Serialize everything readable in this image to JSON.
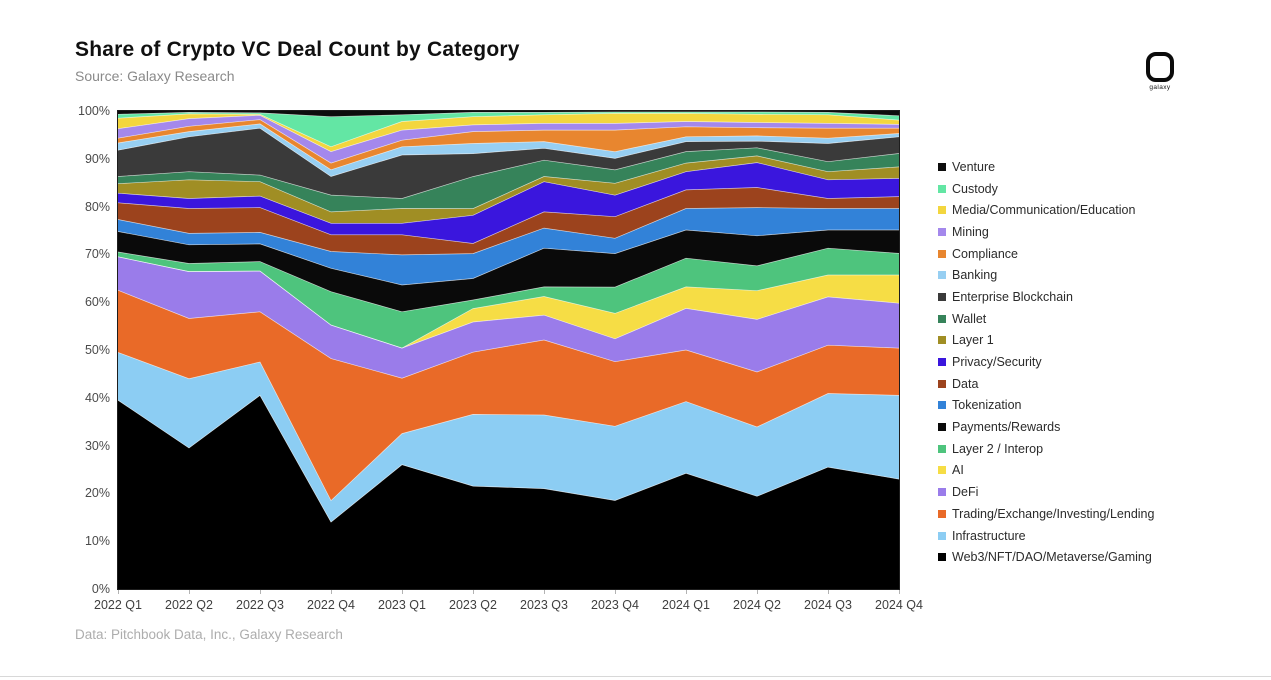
{
  "header": {
    "title": "Share of Crypto VC Deal Count by Category",
    "source": "Source: Galaxy Research"
  },
  "logo": {
    "label": "galaxy"
  },
  "footer": {
    "attribution": "Data: Pitchbook Data, Inc., Galaxy Research"
  },
  "chart_data": {
    "type": "area",
    "stacking": "percent",
    "title": "Share of Crypto VC Deal Count by Category",
    "xlabel": "",
    "ylabel": "",
    "ylim": [
      0,
      100
    ],
    "grid": false,
    "legend_position": "right",
    "y_ticks": [
      "0%",
      "10%",
      "20%",
      "30%",
      "40%",
      "50%",
      "60%",
      "70%",
      "80%",
      "90%",
      "100%"
    ],
    "x": [
      "2022 Q1",
      "2022 Q2",
      "2022 Q3",
      "2022 Q4",
      "2023 Q1",
      "2023 Q2",
      "2023 Q3",
      "2023 Q4",
      "2024 Q1",
      "2024 Q2",
      "2024 Q3",
      "2024 Q4"
    ],
    "series_note": "listed bottom-to-top of the stack; values are percent share per quarter",
    "series": [
      {
        "name": "Web3/NFT/DAO/Metaverse/Gaming",
        "color": "#000000",
        "values": [
          39.5,
          29.5,
          40.5,
          14.0,
          26.0,
          21.5,
          21.0,
          18.5,
          24.2,
          19.4,
          25.5,
          23.0
        ]
      },
      {
        "name": "Infrastructure",
        "color": "#8ccdf3",
        "values": [
          10.0,
          14.5,
          7.0,
          4.5,
          6.5,
          15.0,
          15.4,
          15.5,
          15.0,
          14.5,
          15.4,
          17.5
        ]
      },
      {
        "name": "Trading/Exchange/Investing/Lending",
        "color": "#e96a28",
        "values": [
          13.0,
          12.6,
          10.5,
          29.7,
          11.6,
          13.0,
          15.7,
          13.5,
          10.8,
          11.5,
          10.1,
          9.9
        ]
      },
      {
        "name": "DeFi",
        "color": "#9a7cea",
        "values": [
          7.0,
          9.8,
          8.5,
          7.0,
          6.3,
          6.3,
          5.2,
          4.8,
          8.7,
          11.0,
          10.1,
          9.4
        ]
      },
      {
        "name": "AI",
        "color": "#f6dd45",
        "values": [
          0.0,
          0.0,
          0.0,
          0.0,
          0.0,
          2.8,
          3.9,
          5.3,
          4.5,
          6.0,
          4.6,
          5.9
        ]
      },
      {
        "name": "Layer 2 / Interop",
        "color": "#4ec47d",
        "values": [
          1.0,
          1.7,
          2.0,
          7.0,
          7.6,
          1.8,
          2.0,
          5.5,
          6.0,
          5.2,
          5.6,
          4.5
        ]
      },
      {
        "name": "Payments/Rewards",
        "color": "#0a0a0a",
        "values": [
          4.3,
          3.9,
          3.7,
          4.9,
          5.6,
          4.5,
          8.1,
          7.0,
          5.9,
          6.3,
          3.8,
          4.9
        ]
      },
      {
        "name": "Tokenization",
        "color": "#3282d8",
        "values": [
          2.5,
          2.4,
          2.4,
          3.5,
          6.3,
          5.2,
          4.2,
          3.2,
          4.5,
          5.9,
          4.5,
          4.5
        ]
      },
      {
        "name": "Data",
        "color": "#9c431d",
        "values": [
          3.5,
          5.2,
          5.2,
          3.5,
          4.2,
          2.1,
          3.4,
          4.5,
          3.9,
          4.2,
          2.1,
          2.5
        ]
      },
      {
        "name": "Privacy/Security",
        "color": "#3a16dd",
        "values": [
          2.0,
          2.1,
          2.4,
          2.4,
          2.4,
          5.9,
          6.3,
          4.5,
          3.8,
          5.2,
          3.9,
          3.8
        ]
      },
      {
        "name": "Layer 1",
        "color": "#a08e24",
        "values": [
          2.0,
          3.9,
          3.0,
          2.4,
          3.1,
          1.4,
          1.1,
          2.5,
          1.8,
          1.4,
          1.7,
          2.4
        ]
      },
      {
        "name": "Wallet",
        "color": "#36835a",
        "values": [
          1.5,
          1.7,
          1.4,
          3.5,
          2.1,
          6.7,
          3.4,
          2.8,
          2.4,
          1.7,
          2.1,
          2.8
        ]
      },
      {
        "name": "Enterprise Blockchain",
        "color": "#3a3a3a",
        "values": [
          5.5,
          7.3,
          9.8,
          3.9,
          9.1,
          4.8,
          2.5,
          2.4,
          2.1,
          1.4,
          3.8,
          3.5
        ]
      },
      {
        "name": "Banking",
        "color": "#97cff2",
        "values": [
          1.5,
          1.1,
          0.9,
          1.4,
          1.7,
          2.1,
          1.4,
          1.4,
          1.0,
          1.1,
          1.1,
          0.7
        ]
      },
      {
        "name": "Compliance",
        "color": "#e8862f",
        "values": [
          1.0,
          1.1,
          0.9,
          1.4,
          1.4,
          2.5,
          2.4,
          4.5,
          2.1,
          1.7,
          2.1,
          1.1
        ]
      },
      {
        "name": "Mining",
        "color": "#a488ec",
        "values": [
          2.0,
          1.6,
          0.9,
          2.4,
          2.1,
          1.4,
          1.4,
          1.4,
          1.1,
          1.1,
          1.0,
          0.8
        ]
      },
      {
        "name": "Media/Communication/Education",
        "color": "#f3d63e",
        "values": [
          2.2,
          1.0,
          0.2,
          1.0,
          1.8,
          1.7,
          1.8,
          2.1,
          1.7,
          1.7,
          1.8,
          0.9
        ]
      },
      {
        "name": "Custody",
        "color": "#63e6a4",
        "values": [
          0.8,
          0.3,
          0.3,
          6.3,
          1.4,
          0.9,
          0.5,
          0.3,
          0.3,
          0.5,
          0.5,
          0.9
        ]
      },
      {
        "name": "Venture",
        "color": "#0d0d0d",
        "values": [
          0.7,
          0.3,
          0.4,
          1.2,
          0.8,
          0.3,
          0.3,
          0.2,
          0.2,
          0.2,
          0.3,
          1.0
        ]
      }
    ],
    "legend_order_top_to_bottom": [
      "Venture",
      "Custody",
      "Media/Communication/Education",
      "Mining",
      "Compliance",
      "Banking",
      "Enterprise Blockchain",
      "Wallet",
      "Layer 1",
      "Privacy/Security",
      "Data",
      "Tokenization",
      "Payments/Rewards",
      "Layer 2 / Interop",
      "AI",
      "DeFi",
      "Trading/Exchange/Investing/Lending",
      "Infrastructure",
      "Web3/NFT/DAO/Metaverse/Gaming"
    ]
  }
}
